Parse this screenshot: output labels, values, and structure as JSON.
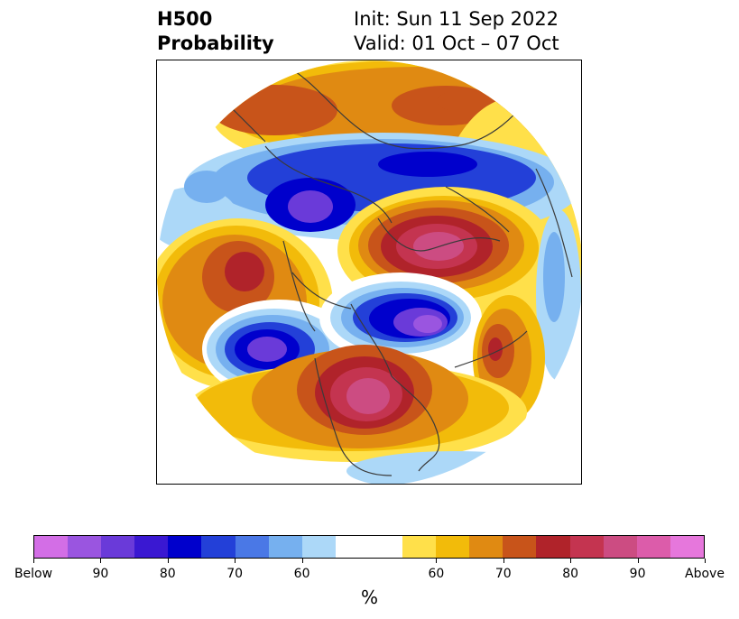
{
  "title": {
    "left_line1": "H500",
    "left_line2": "Probability",
    "right_line1": "Init: Sun 11 Sep 2022",
    "right_line2": "Valid: 01 Oct – 07 Oct"
  },
  "colorbar": {
    "unit_label": "%",
    "colors": [
      "#d36ee6",
      "#9a55e0",
      "#6a3ad9",
      "#3a18d2",
      "#0000cc",
      "#2340d8",
      "#4a78e6",
      "#76b0ef",
      "#acd8f8",
      "#ffffff",
      "#ffffff",
      "#ffe04a",
      "#f2bb0a",
      "#e08a12",
      "#c8541a",
      "#b0232a",
      "#c43450",
      "#cc4c82",
      "#dc5caa",
      "#e677dc"
    ],
    "tick_labels": [
      "Below",
      "90",
      "80",
      "70",
      "60",
      "60",
      "70",
      "80",
      "90",
      "Above"
    ]
  },
  "map": {
    "projection": "north-polar-stereographic",
    "colors": {
      "below_light": "#acd8f8",
      "below_mid": "#76b0ef",
      "below_blue": "#2340d8",
      "below_deep": "#0000cc",
      "below_purple": "#6a3ad9",
      "below_violet": "#9a55e0",
      "above_yellow": "#ffe04a",
      "above_gold": "#f2bb0a",
      "above_orange": "#e08a12",
      "above_rust": "#c8541a",
      "above_red": "#b0232a",
      "above_crimson": "#c43450",
      "above_pink": "#cc4c82",
      "coast": "#3a3a3a"
    }
  }
}
